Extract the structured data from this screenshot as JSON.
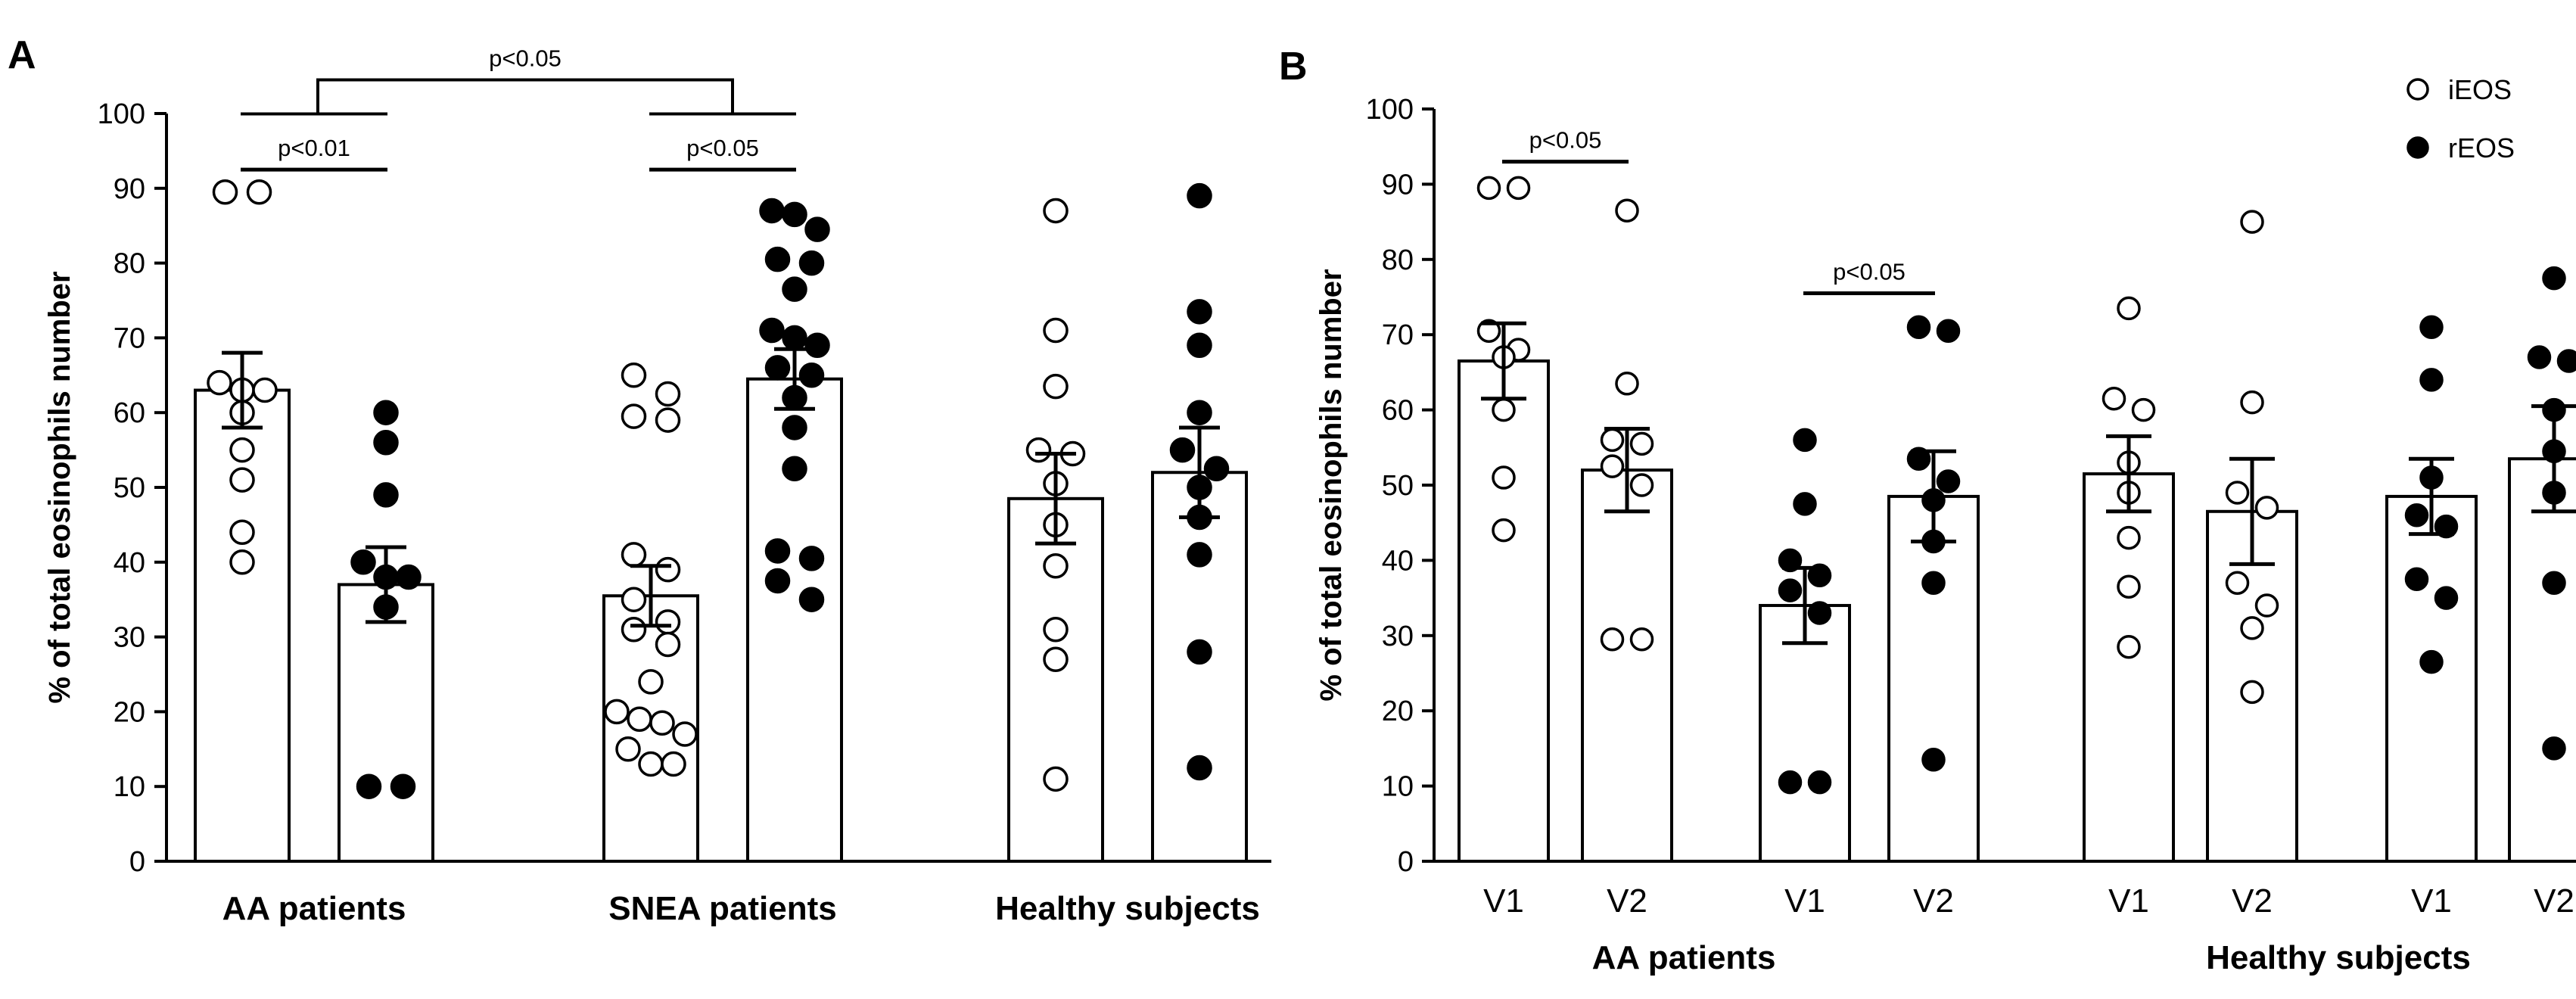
{
  "chart_data": [
    {
      "panel": "A",
      "type": "bar",
      "ylabel": "% of total eosinophils number",
      "ylim": [
        0,
        100
      ],
      "yticks": [
        0,
        10,
        20,
        30,
        40,
        50,
        60,
        70,
        80,
        90,
        100
      ],
      "groups": [
        "AA patients",
        "SNEA patients",
        "Healthy subjects"
      ],
      "bars": [
        {
          "group": "AA patients",
          "series": "iEOS",
          "mean": 63,
          "sem": 5,
          "points": [
            89.5,
            89.5,
            64,
            63,
            63,
            60,
            55,
            51,
            44,
            40
          ]
        },
        {
          "group": "AA patients",
          "series": "rEOS",
          "mean": 37,
          "sem": 5,
          "points": [
            60,
            56,
            49,
            40,
            38,
            38,
            34,
            10,
            10
          ]
        },
        {
          "group": "SNEA patients",
          "series": "iEOS",
          "mean": 35.5,
          "sem": 4,
          "points": [
            65,
            62.5,
            59.5,
            59,
            41,
            39,
            35,
            32,
            31,
            29,
            24,
            20,
            19,
            18.5,
            17,
            15,
            13,
            13
          ]
        },
        {
          "group": "SNEA patients",
          "series": "rEOS",
          "mean": 64.5,
          "sem": 4,
          "points": [
            87,
            86.5,
            84.5,
            80.5,
            80,
            76.5,
            71,
            70,
            69,
            66,
            65,
            62,
            58,
            52.5,
            41.5,
            40.5,
            37.5,
            35
          ]
        },
        {
          "group": "Healthy subjects",
          "series": "iEOS",
          "mean": 48.5,
          "sem": 6,
          "points": [
            87,
            71,
            63.5,
            55,
            54.5,
            50.5,
            45,
            39.5,
            31,
            27,
            11
          ]
        },
        {
          "group": "Healthy subjects",
          "series": "rEOS",
          "mean": 52,
          "sem": 6,
          "points": [
            89,
            73.5,
            69,
            60,
            55,
            52.5,
            50,
            46,
            41,
            28,
            12.5
          ]
        }
      ],
      "annotations": [
        {
          "text": "p<0.01",
          "from": "AA patients iEOS",
          "to": "AA patients rEOS",
          "y": 92.5
        },
        {
          "text": "p<0.05",
          "from": "SNEA patients iEOS",
          "to": "SNEA patients rEOS",
          "y": 92.5
        },
        {
          "text": "p<0.05",
          "from": "AA patients (iEOS vs rEOS)",
          "to": "SNEA patients (iEOS vs rEOS)",
          "y": 104.5
        }
      ]
    },
    {
      "panel": "B",
      "type": "bar",
      "ylabel": "% of total eosinophils number",
      "ylim": [
        0,
        100
      ],
      "yticks": [
        0,
        10,
        20,
        30,
        40,
        50,
        60,
        70,
        80,
        90,
        100
      ],
      "visit_labels": [
        "V1",
        "V2",
        "V1",
        "V2",
        "V1",
        "V2",
        "V1",
        "V2"
      ],
      "groups": [
        "AA patients",
        "Healthy subjects"
      ],
      "legend": {
        "placement": "top-right",
        "items": [
          {
            "label": "iEOS",
            "marker": "open-circle"
          },
          {
            "label": "rEOS",
            "marker": "filled-circle"
          }
        ]
      },
      "bars": [
        {
          "group": "AA patients",
          "series": "iEOS",
          "visit": "V1",
          "mean": 66.5,
          "sem": 5,
          "points": [
            89.5,
            89.5,
            70.5,
            68,
            67,
            60,
            51,
            44
          ]
        },
        {
          "group": "AA patients",
          "series": "iEOS",
          "visit": "V2",
          "mean": 52,
          "sem": 5.5,
          "points": [
            86.5,
            63.5,
            56,
            55.5,
            52.5,
            50,
            29.5,
            29.5
          ]
        },
        {
          "group": "AA patients",
          "series": "rEOS",
          "visit": "V1",
          "mean": 34,
          "sem": 5,
          "points": [
            56,
            47.5,
            40,
            38,
            36,
            33,
            10.5,
            10.5
          ]
        },
        {
          "group": "AA patients",
          "series": "rEOS",
          "visit": "V2",
          "mean": 48.5,
          "sem": 6,
          "points": [
            71,
            70.5,
            53.5,
            50.5,
            48,
            42.5,
            37,
            13.5
          ]
        },
        {
          "group": "Healthy subjects",
          "series": "iEOS",
          "visit": "V1",
          "mean": 51.5,
          "sem": 5,
          "points": [
            73.5,
            61.5,
            60,
            53,
            49,
            43,
            36.5,
            28.5
          ]
        },
        {
          "group": "Healthy subjects",
          "series": "iEOS",
          "visit": "V2",
          "mean": 46.5,
          "sem": 7,
          "points": [
            85,
            61,
            49,
            47,
            37,
            34,
            31,
            22.5
          ]
        },
        {
          "group": "Healthy subjects",
          "series": "rEOS",
          "visit": "V1",
          "mean": 48.5,
          "sem": 5,
          "points": [
            71,
            64,
            51,
            46,
            44.5,
            37.5,
            35,
            26.5
          ]
        },
        {
          "group": "Healthy subjects",
          "series": "rEOS",
          "visit": "V2",
          "mean": 53.5,
          "sem": 7,
          "points": [
            77.5,
            67,
            66.5,
            60,
            54.5,
            49,
            37,
            15
          ]
        }
      ],
      "annotations": [
        {
          "text": "p<0.05",
          "from": "AA iEOS V1",
          "to": "AA iEOS V2",
          "y": 93
        },
        {
          "text": "p<0.05",
          "from": "AA rEOS V1",
          "to": "AA rEOS V2",
          "y": 75.5
        }
      ]
    }
  ]
}
